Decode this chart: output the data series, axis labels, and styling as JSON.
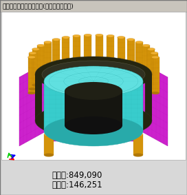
{
  "title": "スキュー付かご型誘導機(周波数応答解析)",
  "stat1": "要素数:849,090",
  "stat2": "節点数:146,251",
  "bg_color": "#d8d8d8",
  "scene_bg": "#ffffff",
  "colors": {
    "orange": "#d4940a",
    "orange_dark": "#b07808",
    "orange_light": "#f0b030",
    "magenta": "#cc22cc",
    "magenta_dark": "#aa00aa",
    "magenta_light": "#e050e0",
    "cyan": "#38cccc",
    "cyan_dark": "#28aaaa",
    "cyan_light": "#60e0e0",
    "dark": "#1a1a0a",
    "dark2": "#252510"
  },
  "figsize": [
    2.72,
    2.83
  ],
  "dpi": 100
}
